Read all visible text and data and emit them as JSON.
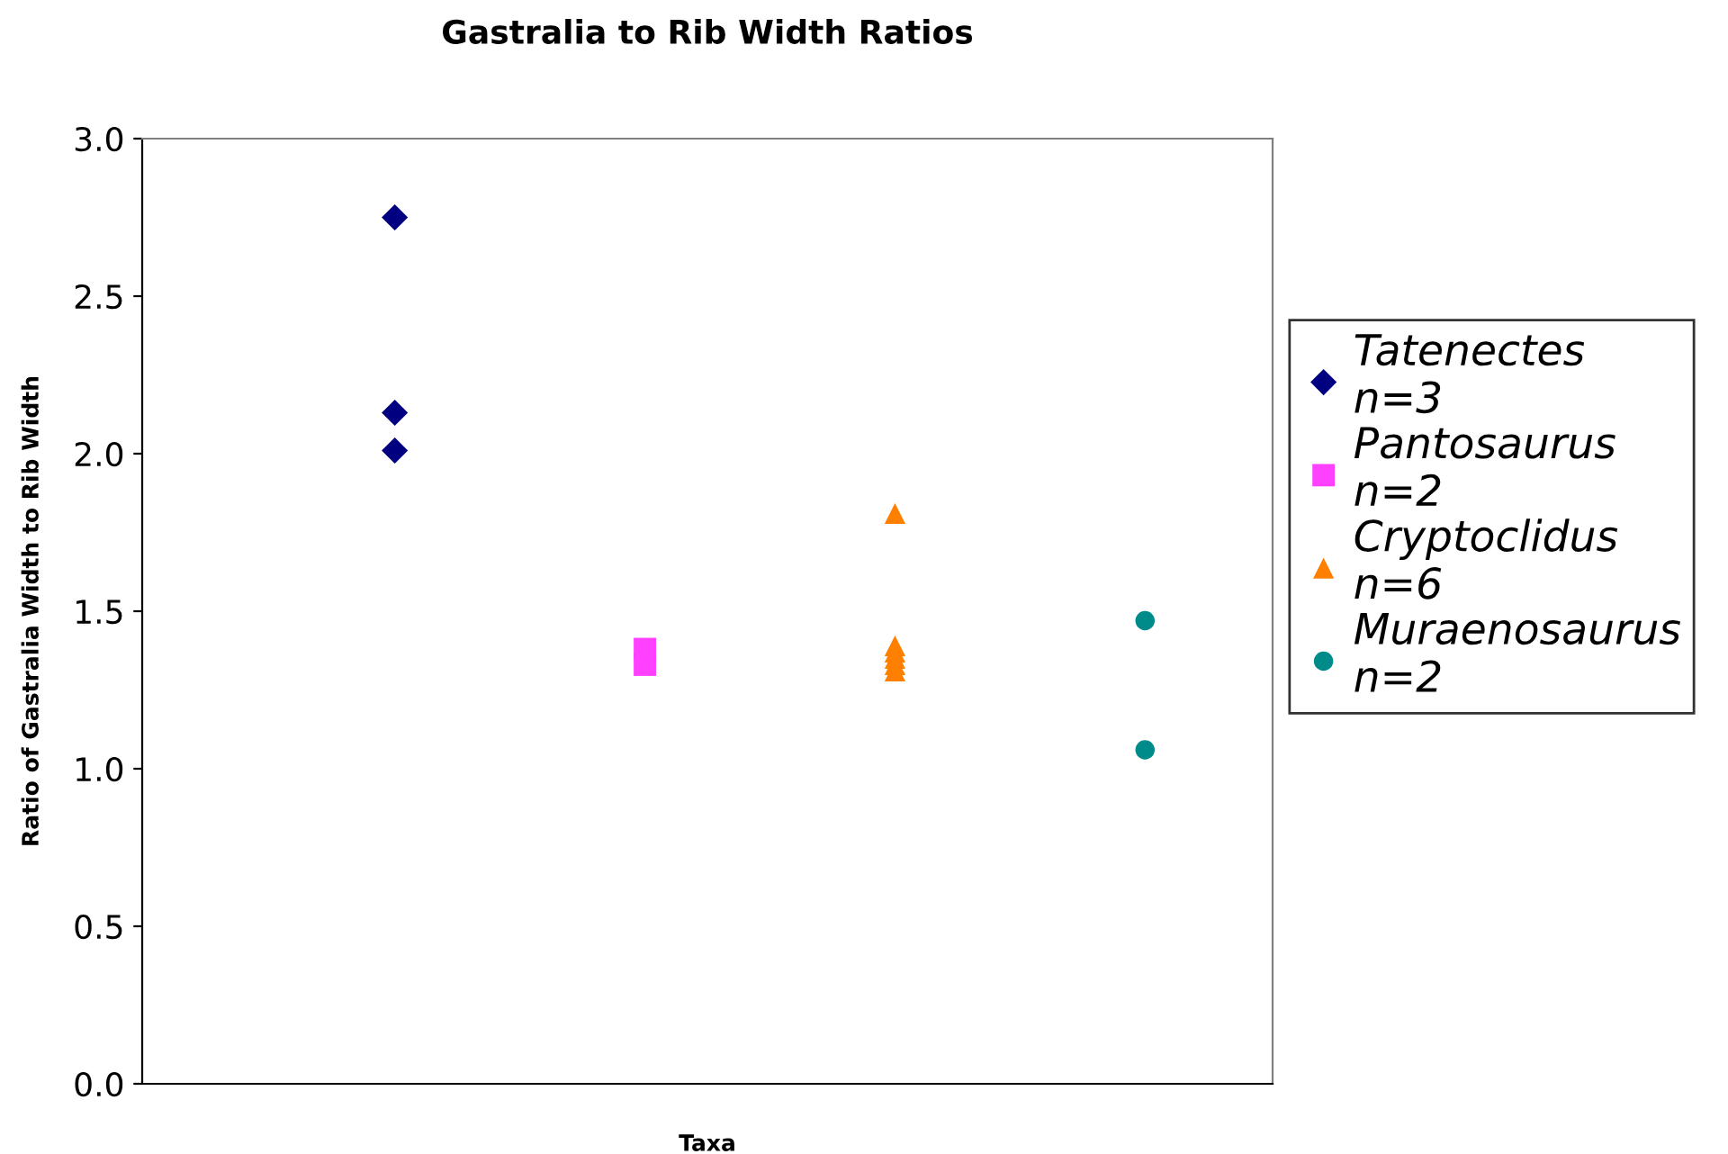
{
  "chart_data": {
    "type": "scatter",
    "title": "Gastralia to Rib Width Ratios",
    "xlabel": "Taxa",
    "ylabel": "Ratio of Gastralia Width to Rib Width",
    "categories": [
      null,
      null,
      null,
      null
    ],
    "ylim": [
      0,
      3.0
    ],
    "yticks": [
      {
        "value": 0,
        "label": "0.0"
      },
      {
        "value": 0.5,
        "label": "0.5"
      },
      {
        "value": 1,
        "label": "1.0"
      },
      {
        "value": 1.5,
        "label": "1.5"
      },
      {
        "value": 2,
        "label": "2.0"
      },
      {
        "value": 2.5,
        "label": "2.5"
      },
      {
        "value": 3,
        "label": "3.0"
      }
    ],
    "tick_labels": "y",
    "grid": false,
    "legend": "right",
    "series": [
      {
        "name": "Tatenectes\nn=3",
        "color": "#000080",
        "marker": "diamond",
        "values": [
          2.75,
          null,
          null,
          null
        ]
      },
      {
        "color": "#000080",
        "marker": "diamond",
        "values": [
          2.13,
          null,
          null,
          null
        ]
      },
      {
        "color": "#000080",
        "marker": "diamond",
        "values": [
          2.01,
          null,
          null,
          null
        ]
      },
      {
        "name": "Pantosaurus\nn=2",
        "color": "#ff40ff",
        "marker": "square",
        "values": [
          null,
          1.38,
          null,
          null
        ]
      },
      {
        "color": "#ff40ff",
        "marker": "square",
        "values": [
          null,
          1.33,
          null,
          null
        ]
      },
      {
        "name": "Cryptoclidus\nn=6",
        "color": "#ff8000",
        "marker": "triangle",
        "values": [
          null,
          null,
          1.81,
          null
        ]
      },
      {
        "color": "#ff8000",
        "marker": "triangle",
        "values": [
          null,
          null,
          1.39,
          null
        ]
      },
      {
        "color": "#ff8000",
        "marker": "triangle",
        "values": [
          null,
          null,
          1.37,
          null
        ]
      },
      {
        "color": "#ff8000",
        "marker": "triangle",
        "values": [
          null,
          null,
          1.35,
          null
        ]
      },
      {
        "color": "#ff8000",
        "marker": "triangle",
        "values": [
          null,
          null,
          1.33,
          null
        ]
      },
      {
        "color": "#ff8000",
        "marker": "triangle",
        "values": [
          null,
          null,
          1.31,
          null
        ]
      },
      {
        "name": "Muraenosaurus\nn=2",
        "color": "#008b8b",
        "marker": "circle",
        "values": [
          null,
          null,
          null,
          1.47
        ]
      },
      {
        "color": "#008b8b",
        "marker": "circle",
        "values": [
          null,
          null,
          null,
          1.06
        ]
      }
    ]
  }
}
